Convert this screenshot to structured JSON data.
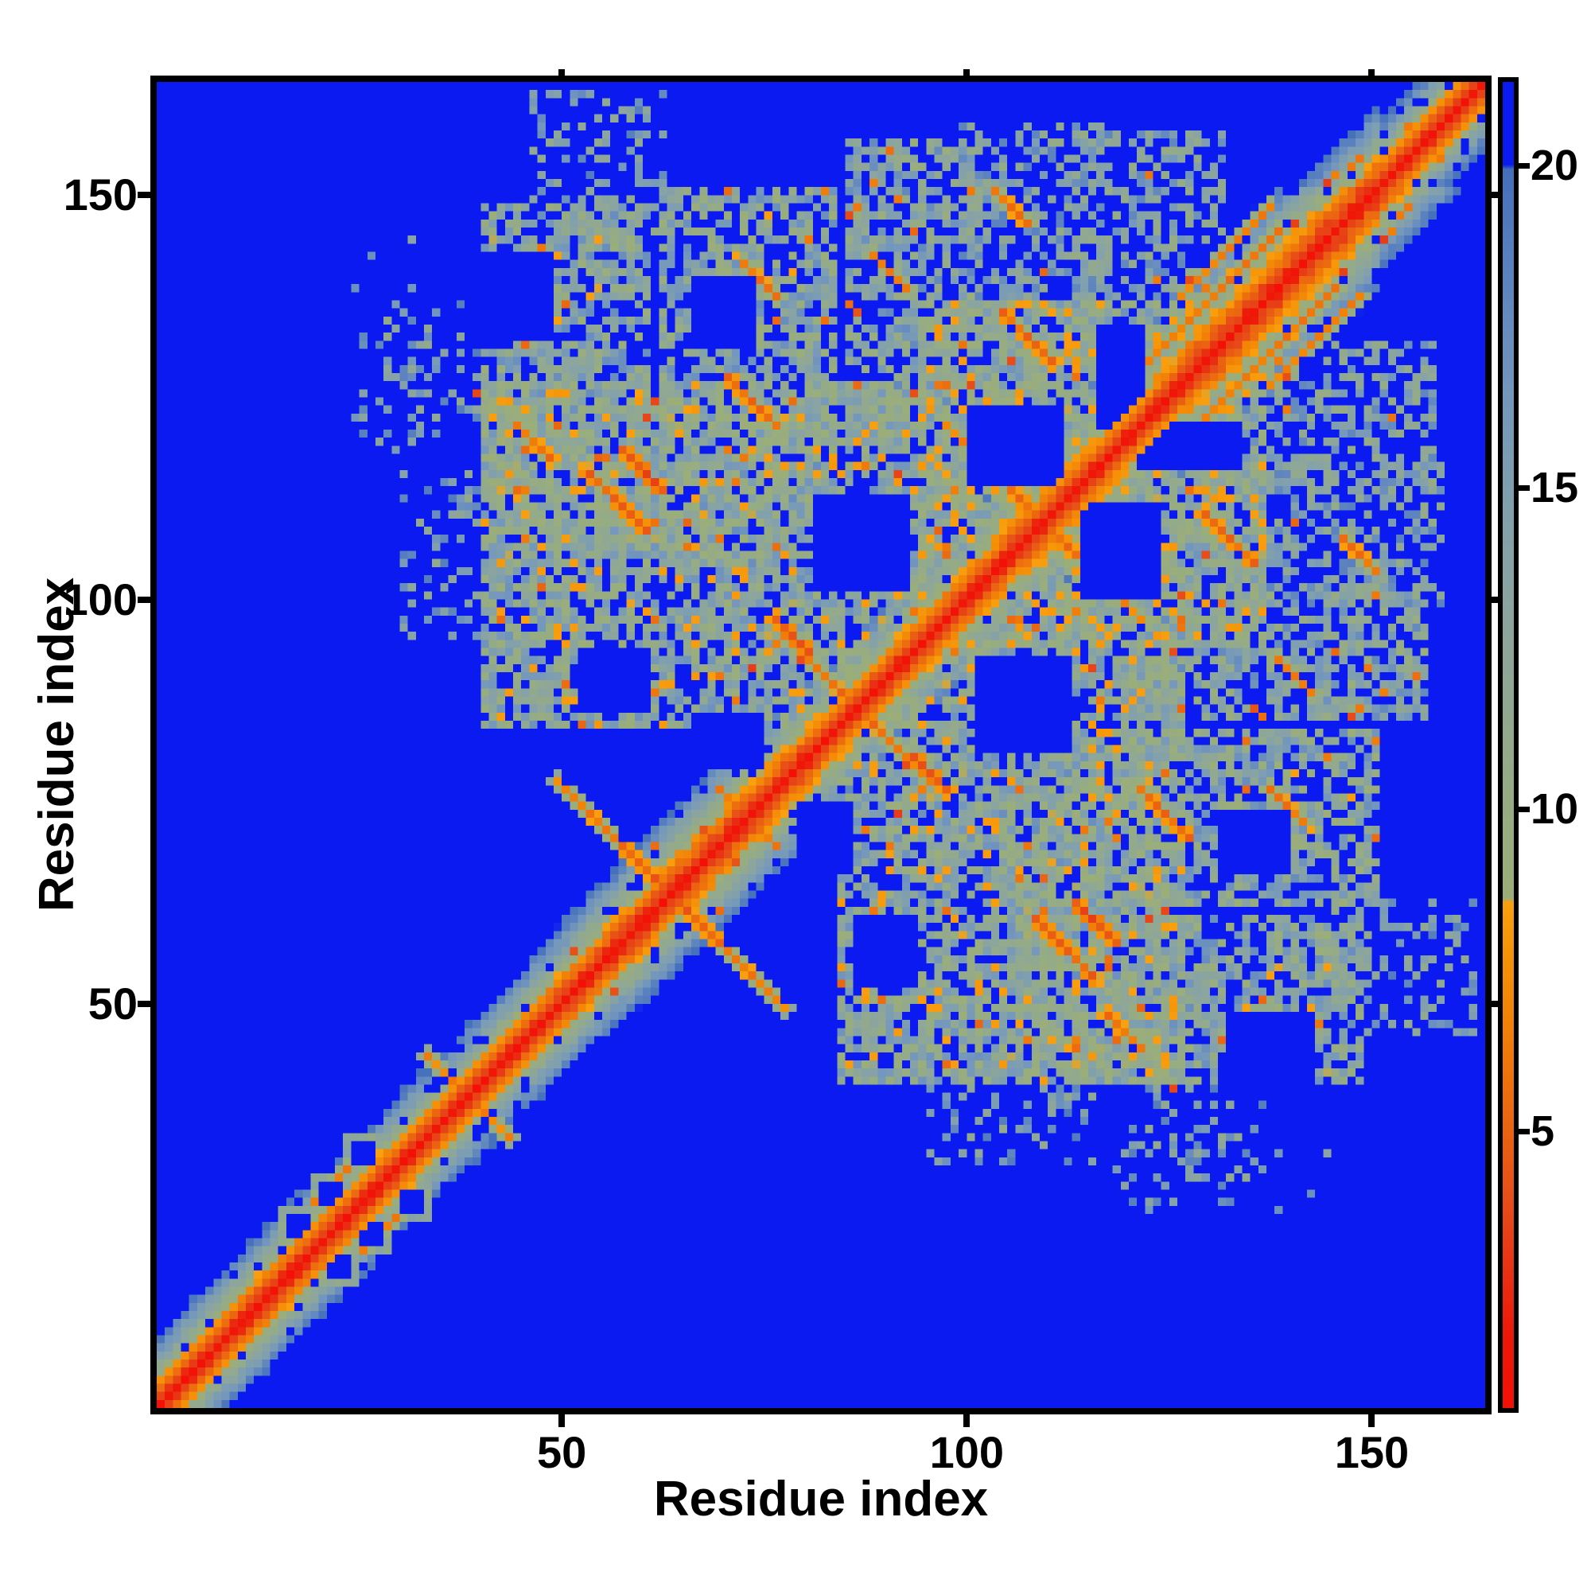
{
  "chart_data": {
    "type": "heatmap",
    "title": "",
    "xlabel": "Residue index",
    "ylabel": "Residue index",
    "x_ticks": [
      50,
      100,
      150
    ],
    "y_ticks": [
      50,
      100,
      150
    ],
    "axis_min": 0,
    "axis_max": 164,
    "n_residues": 164,
    "grid": false,
    "legend_position": "right-colorbar",
    "colorbar": {
      "ticks": [
        5,
        10,
        15,
        20
      ],
      "vmin": 0.7,
      "vmax": 21.3
    },
    "colormap_stops": [
      [
        0.0,
        "#f60d07"
      ],
      [
        1.8,
        "#ee1808"
      ],
      [
        2.8,
        "#e93114"
      ],
      [
        3.8,
        "#e74b19"
      ],
      [
        4.8,
        "#ea6013"
      ],
      [
        5.8,
        "#ee720d"
      ],
      [
        6.8,
        "#f28307"
      ],
      [
        7.7,
        "#f59208"
      ],
      [
        8.55,
        "#f9a00f"
      ],
      [
        8.62,
        "#9bae79"
      ],
      [
        10.5,
        "#95ab86"
      ],
      [
        12.5,
        "#8ea69a"
      ],
      [
        14.5,
        "#83a1ab"
      ],
      [
        16.5,
        "#7497bd"
      ],
      [
        18.5,
        "#5a81bf"
      ],
      [
        19.95,
        "#4470bb"
      ],
      [
        20.02,
        "#0a1af0"
      ],
      [
        21.5,
        "#0a1af0"
      ]
    ],
    "far_value": 25,
    "noise_seed": 911,
    "band": {
      "d0": 1.4,
      "slope": 2.05,
      "max_dj": 16,
      "width_segments": [
        [
          0,
          9,
          0.95
        ],
        [
          10,
          32,
          1.0
        ],
        [
          33,
          45,
          0.92
        ],
        [
          46,
          57,
          1.05
        ],
        [
          58,
          80,
          1.18
        ],
        [
          81,
          94,
          1.0
        ],
        [
          95,
          125,
          1.12
        ],
        [
          126,
          150,
          1.38
        ],
        [
          151,
          163,
          0.9
        ]
      ]
    },
    "hairpins": [
      {
        "c": 63,
        "len": 14,
        "d": 4.2
      },
      {
        "c": 86,
        "len": 9,
        "d": 5.0
      },
      {
        "c": 109,
        "len": 12,
        "d": 4.6
      },
      {
        "c": 38,
        "len": 5,
        "d": 6.0
      },
      {
        "c": 122,
        "len": 6,
        "d": 5.4
      }
    ],
    "anti_contacts": [
      {
        "i": 53,
        "j": 115,
        "len": 8,
        "d": 4.8
      },
      {
        "i": 57,
        "j": 118,
        "len": 6,
        "d": 4.2
      },
      {
        "i": 76,
        "j": 97,
        "len": 5,
        "d": 4.3
      },
      {
        "i": 70,
        "j": 127,
        "len": 7,
        "d": 5.5
      },
      {
        "i": 104,
        "j": 135,
        "len": 7,
        "d": 5.3
      },
      {
        "i": 44,
        "j": 121,
        "len": 5,
        "d": 5.8
      },
      {
        "i": 72,
        "j": 141,
        "len": 5,
        "d": 5.8
      },
      {
        "i": 88,
        "j": 142,
        "len": 5,
        "d": 6.2
      },
      {
        "i": 103,
        "j": 150,
        "len": 5,
        "d": 6.0
      }
    ],
    "par_contacts": [
      {
        "i": 122,
        "j": 129,
        "len": 17,
        "d": 6.2
      },
      {
        "i": 126,
        "j": 137,
        "len": 12,
        "d": 6.9
      },
      {
        "i": 19,
        "j": 25,
        "len": 8,
        "d": 6.8
      }
    ],
    "blobs": [
      {
        "i0": 40,
        "i1": 60,
        "j0": 104,
        "j1": 148,
        "d": 13.0,
        "spread": 4.5,
        "p": 0.72
      },
      {
        "i0": 62,
        "i1": 83,
        "j0": 104,
        "j1": 150,
        "d": 13.0,
        "spread": 4.5,
        "p": 0.72
      },
      {
        "i0": 85,
        "i1": 100,
        "j0": 118,
        "j1": 156,
        "d": 13.5,
        "spread": 4.5,
        "p": 0.65
      },
      {
        "i0": 99,
        "i1": 117,
        "j0": 137,
        "j1": 158,
        "d": 14.5,
        "spread": 4.0,
        "p": 0.5
      },
      {
        "i0": 40,
        "i1": 94,
        "j0": 84,
        "j1": 126,
        "d": 12.5,
        "spread": 4.5,
        "p": 0.8
      },
      {
        "i0": 94,
        "i1": 136,
        "j0": 94,
        "j1": 136,
        "d": 12.5,
        "spread": 4.5,
        "p": 0.75
      },
      {
        "i0": 114,
        "i1": 131,
        "j0": 136,
        "j1": 157,
        "d": 14.0,
        "spread": 4.0,
        "p": 0.55
      },
      {
        "i0": 30,
        "i1": 45,
        "j0": 95,
        "j1": 115,
        "d": 15.0,
        "spread": 4.0,
        "p": 0.25
      },
      {
        "i0": 46,
        "i1": 62,
        "j0": 144,
        "j1": 162,
        "d": 15.0,
        "spread": 4.0,
        "p": 0.35
      },
      {
        "i0": 28,
        "i1": 40,
        "j0": 120,
        "j1": 136,
        "d": 15.0,
        "spread": 4.0,
        "p": 0.3
      },
      {
        "i0": 24,
        "i1": 32,
        "j0": 118,
        "j1": 144,
        "d": 16.0,
        "spread": 3.0,
        "p": 0.06
      }
    ],
    "voids": [
      {
        "i0": 100,
        "i1": 111,
        "j0": 114,
        "j1": 123
      },
      {
        "i0": 52,
        "i1": 60,
        "j0": 86,
        "j1": 93
      },
      {
        "i0": 54,
        "i1": 59,
        "j0": 78,
        "j1": 83
      },
      {
        "i0": 66,
        "i1": 74,
        "j0": 79,
        "j1": 85
      },
      {
        "i0": 116,
        "i1": 121,
        "j0": 121,
        "j1": 133
      },
      {
        "i0": 38,
        "i1": 48,
        "j0": 132,
        "j1": 142
      },
      {
        "i0": 66,
        "i1": 73,
        "j0": 131,
        "j1": 139
      },
      {
        "i0": 81,
        "i1": 92,
        "j0": 101,
        "j1": 112
      }
    ],
    "rings": [
      {
        "i": 21,
        "j": 26
      },
      {
        "i": 25,
        "j": 31
      },
      {
        "i": 17,
        "j": 22
      }
    ],
    "speck_orange_p": 0.018,
    "speck_red_p": 0.004,
    "hole_p": 0.1
  },
  "colors": {
    "background": "#ffffff",
    "frame": "#000000",
    "far_blue": "#0a1af0",
    "diagonal_red": "#f60d07",
    "text": "#000000"
  }
}
